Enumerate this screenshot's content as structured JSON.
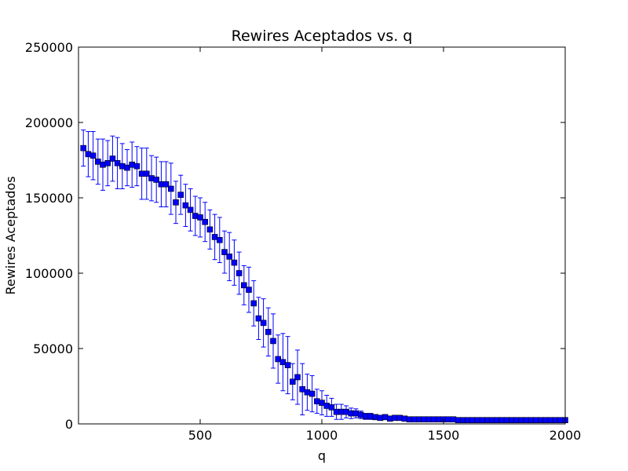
{
  "chart_data": {
    "type": "scatter",
    "title": "Rewires Aceptados  vs. q",
    "xlabel": "q",
    "ylabel": "Rewires Aceptados",
    "xlim": [
      0,
      2000
    ],
    "ylim": [
      0,
      250000
    ],
    "xticks": [
      500,
      1000,
      1500,
      2000
    ],
    "yticks": [
      0,
      50000,
      100000,
      150000,
      200000,
      250000
    ],
    "grid": false,
    "legend": "none",
    "marker": "square",
    "colors": {
      "marker": "#0000ff",
      "errorbar": "#0000ff",
      "axes": "#000000"
    },
    "series": [
      {
        "x": [
          20,
          40,
          60,
          80,
          100,
          120,
          140,
          160,
          180,
          200,
          220,
          240,
          260,
          280,
          300,
          320,
          340,
          360,
          380,
          400,
          420,
          440,
          460,
          480,
          500,
          520,
          540,
          560,
          580,
          600,
          620,
          640,
          660,
          680,
          700,
          720,
          740,
          760,
          780,
          800,
          820,
          840,
          860,
          880,
          900,
          920,
          940,
          960,
          980,
          1000,
          1020,
          1040,
          1060,
          1080,
          1100,
          1120,
          1140,
          1160,
          1180,
          1200,
          1220,
          1240,
          1260,
          1280,
          1300,
          1320,
          1340,
          1360,
          1380,
          1400,
          1420,
          1440,
          1460,
          1480,
          1500,
          1520,
          1540,
          1560,
          1580,
          1600,
          1620,
          1640,
          1660,
          1680,
          1700,
          1720,
          1740,
          1760,
          1780,
          1800,
          1820,
          1840,
          1860,
          1880,
          1900,
          1920,
          1940,
          1960,
          1980,
          2000
        ],
        "y": [
          183000,
          179000,
          178000,
          174000,
          172000,
          173000,
          176000,
          173000,
          171000,
          170000,
          172000,
          171000,
          166000,
          166000,
          163000,
          162000,
          159000,
          159000,
          156000,
          147000,
          152000,
          145000,
          142000,
          138000,
          137000,
          134000,
          129000,
          124000,
          122000,
          114000,
          111000,
          107000,
          100000,
          92000,
          89000,
          80000,
          70000,
          67000,
          61000,
          55000,
          43000,
          41000,
          39000,
          28000,
          31000,
          23000,
          21000,
          20000,
          15000,
          14000,
          12000,
          11000,
          8000,
          8000,
          8000,
          7000,
          7000,
          6000,
          5000,
          5000,
          4500,
          4000,
          4500,
          3500,
          4000,
          4000,
          3500,
          3000,
          3000,
          3000,
          3000,
          3000,
          3000,
          3000,
          3000,
          3000,
          3000,
          2500,
          2500,
          2500,
          2500,
          2500,
          2500,
          2500,
          2500,
          2500,
          2500,
          2500,
          2500,
          2500,
          2500,
          2500,
          2500,
          2500,
          2500,
          2500,
          2500,
          2500,
          2500,
          2500
        ],
        "yerr": [
          12000,
          15000,
          16000,
          15000,
          17000,
          15000,
          15000,
          17000,
          15000,
          12000,
          15000,
          13000,
          17000,
          17000,
          15000,
          15000,
          15000,
          15000,
          17000,
          14000,
          13000,
          14000,
          14000,
          13000,
          13000,
          13000,
          13000,
          15000,
          15000,
          14000,
          16000,
          15000,
          14000,
          13000,
          15000,
          15000,
          14000,
          16000,
          16000,
          18000,
          16000,
          19000,
          19000,
          12000,
          18000,
          17000,
          12000,
          12000,
          8000,
          8000,
          7000,
          6000,
          5000,
          5000,
          4000,
          3500,
          3000,
          2500,
          2000,
          2000,
          1500,
          1200,
          1200,
          1000,
          1000,
          1000,
          800,
          700,
          700,
          600,
          600,
          600,
          500,
          500,
          500,
          500,
          500,
          400,
          400,
          400,
          400,
          400,
          400,
          400,
          400,
          400,
          400,
          400,
          400,
          400,
          400,
          400,
          400,
          400,
          400,
          400,
          400,
          400,
          400,
          400
        ]
      }
    ]
  }
}
